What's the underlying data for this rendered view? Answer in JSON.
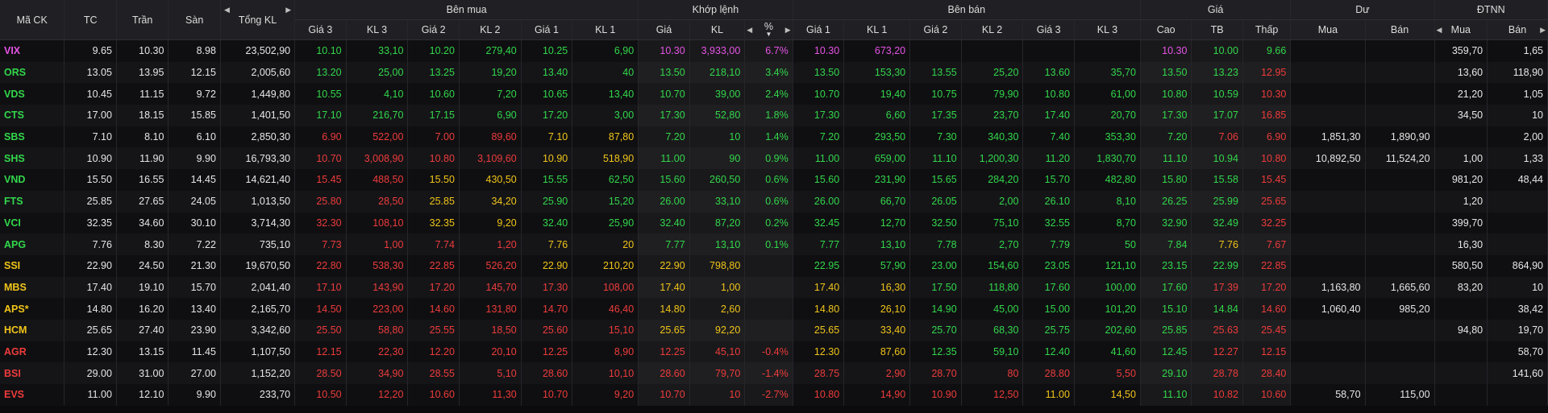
{
  "colors": {
    "up": "#32d74b",
    "down": "#ee3b3b",
    "reference": "#f0c419",
    "ceiling": "#e653e6",
    "floor": "#4dd6e6",
    "header_bg": "#202024",
    "row_bg": "#0f0f11"
  },
  "header": {
    "ma_ck": "Mã CK",
    "tc": "TC",
    "tran": "Trần",
    "san": "Sàn",
    "tong_kl": "Tổng KL",
    "group_buy": "Bên mua",
    "group_match": "Khớp lệnh",
    "group_sell": "Bên bán",
    "group_price": "Giá",
    "group_du": "Dư",
    "group_dtnn": "ĐTNN",
    "buy_cols": [
      "Giá 3",
      "KL 3",
      "Giá 2",
      "KL 2",
      "Giá 1",
      "KL 1"
    ],
    "match_cols": [
      "Giá",
      "KL",
      "%"
    ],
    "sell_cols": [
      "Giá 1",
      "KL 1",
      "Giá 2",
      "KL 2",
      "Giá 3",
      "KL 3"
    ],
    "price_cols": [
      "Cao",
      "TB",
      "Thấp"
    ],
    "du_cols": [
      "Mua",
      "Bán"
    ],
    "dtnn_cols": [
      "Mua",
      "Bán"
    ]
  },
  "rows": [
    {
      "sym": "VIX",
      "c": "ce",
      "tc": "9.65",
      "tran": "10.30",
      "san": "8.98",
      "tongkl": "23,502,90",
      "b3": [
        "10.10",
        "33,10",
        "up"
      ],
      "b2": [
        "10.20",
        "279,40",
        "up"
      ],
      "b1": [
        "10.25",
        "6,90",
        "up"
      ],
      "m": [
        "10.30",
        "3,933,00",
        "6.7%",
        "ce"
      ],
      "s1": [
        "10.30",
        "673,20",
        "ce"
      ],
      "s2": [
        "",
        "",
        ""
      ],
      "s3": [
        "",
        "",
        ""
      ],
      "cao": [
        "10.30",
        "ce"
      ],
      "tb": [
        "10.00",
        "up"
      ],
      "thap": [
        "9.66",
        "up"
      ],
      "du_mua": "",
      "du_ban": "",
      "nn_mua": "359,70",
      "nn_ban": "1,65"
    },
    {
      "sym": "ORS",
      "c": "up",
      "tc": "13.05",
      "tran": "13.95",
      "san": "12.15",
      "tongkl": "2,005,60",
      "b3": [
        "13.20",
        "25,00",
        "up"
      ],
      "b2": [
        "13.25",
        "19,20",
        "up"
      ],
      "b1": [
        "13.40",
        "40",
        "up"
      ],
      "m": [
        "13.50",
        "218,10",
        "3.4%",
        "up"
      ],
      "s1": [
        "13.50",
        "153,30",
        "up"
      ],
      "s2": [
        "13.55",
        "25,20",
        "up"
      ],
      "s3": [
        "13.60",
        "35,70",
        "up"
      ],
      "cao": [
        "13.50",
        "up"
      ],
      "tb": [
        "13.23",
        "up"
      ],
      "thap": [
        "12.95",
        "dn"
      ],
      "du_mua": "",
      "du_ban": "",
      "nn_mua": "13,60",
      "nn_ban": "118,90"
    },
    {
      "sym": "VDS",
      "c": "up",
      "tc": "10.45",
      "tran": "11.15",
      "san": "9.72",
      "tongkl": "1,449,80",
      "b3": [
        "10.55",
        "4,10",
        "up"
      ],
      "b2": [
        "10.60",
        "7,20",
        "up"
      ],
      "b1": [
        "10.65",
        "13,40",
        "up"
      ],
      "m": [
        "10.70",
        "39,00",
        "2.4%",
        "up"
      ],
      "s1": [
        "10.70",
        "19,40",
        "up"
      ],
      "s2": [
        "10.75",
        "79,90",
        "up"
      ],
      "s3": [
        "10.80",
        "61,00",
        "up"
      ],
      "cao": [
        "10.80",
        "up"
      ],
      "tb": [
        "10.59",
        "up"
      ],
      "thap": [
        "10.30",
        "dn"
      ],
      "du_mua": "",
      "du_ban": "",
      "nn_mua": "21,20",
      "nn_ban": "1,05"
    },
    {
      "sym": "CTS",
      "c": "up",
      "tc": "17.00",
      "tran": "18.15",
      "san": "15.85",
      "tongkl": "1,401,50",
      "b3": [
        "17.10",
        "216,70",
        "up"
      ],
      "b2": [
        "17.15",
        "6,90",
        "up"
      ],
      "b1": [
        "17.20",
        "3,00",
        "up"
      ],
      "m": [
        "17.30",
        "52,80",
        "1.8%",
        "up"
      ],
      "s1": [
        "17.30",
        "6,60",
        "up"
      ],
      "s2": [
        "17.35",
        "23,70",
        "up"
      ],
      "s3": [
        "17.40",
        "20,70",
        "up"
      ],
      "cao": [
        "17.30",
        "up"
      ],
      "tb": [
        "17.07",
        "up"
      ],
      "thap": [
        "16.85",
        "dn"
      ],
      "du_mua": "",
      "du_ban": "",
      "nn_mua": "34,50",
      "nn_ban": "10"
    },
    {
      "sym": "SBS",
      "c": "up",
      "tc": "7.10",
      "tran": "8.10",
      "san": "6.10",
      "tongkl": "2,850,30",
      "b3": [
        "6.90",
        "522,00",
        "dn"
      ],
      "b2": [
        "7.00",
        "89,60",
        "dn"
      ],
      "b1": [
        "7.10",
        "87,80",
        "ref"
      ],
      "m": [
        "7.20",
        "10",
        "1.4%",
        "up"
      ],
      "s1": [
        "7.20",
        "293,50",
        "up"
      ],
      "s2": [
        "7.30",
        "340,30",
        "up"
      ],
      "s3": [
        "7.40",
        "353,30",
        "up"
      ],
      "cao": [
        "7.20",
        "up"
      ],
      "tb": [
        "7.06",
        "dn"
      ],
      "thap": [
        "6.90",
        "dn"
      ],
      "du_mua": "1,851,30",
      "du_ban": "1,890,90",
      "nn_mua": "",
      "nn_ban": "2,00"
    },
    {
      "sym": "SHS",
      "c": "up",
      "tc": "10.90",
      "tran": "11.90",
      "san": "9.90",
      "tongkl": "16,793,30",
      "b3": [
        "10.70",
        "3,008,90",
        "dn"
      ],
      "b2": [
        "10.80",
        "3,109,60",
        "dn"
      ],
      "b1": [
        "10.90",
        "518,90",
        "ref"
      ],
      "m": [
        "11.00",
        "90",
        "0.9%",
        "up"
      ],
      "s1": [
        "11.00",
        "659,00",
        "up"
      ],
      "s2": [
        "11.10",
        "1,200,30",
        "up"
      ],
      "s3": [
        "11.20",
        "1,830,70",
        "up"
      ],
      "cao": [
        "11.10",
        "up"
      ],
      "tb": [
        "10.94",
        "up"
      ],
      "thap": [
        "10.80",
        "dn"
      ],
      "du_mua": "10,892,50",
      "du_ban": "11,524,20",
      "nn_mua": "1,00",
      "nn_ban": "1,33"
    },
    {
      "sym": "VND",
      "c": "up",
      "tc": "15.50",
      "tran": "16.55",
      "san": "14.45",
      "tongkl": "14,621,40",
      "b3": [
        "15.45",
        "488,50",
        "dn"
      ],
      "b2": [
        "15.50",
        "430,50",
        "ref"
      ],
      "b1": [
        "15.55",
        "62,50",
        "up"
      ],
      "m": [
        "15.60",
        "260,50",
        "0.6%",
        "up"
      ],
      "s1": [
        "15.60",
        "231,90",
        "up"
      ],
      "s2": [
        "15.65",
        "284,20",
        "up"
      ],
      "s3": [
        "15.70",
        "482,80",
        "up"
      ],
      "cao": [
        "15.80",
        "up"
      ],
      "tb": [
        "15.58",
        "up"
      ],
      "thap": [
        "15.45",
        "dn"
      ],
      "du_mua": "",
      "du_ban": "",
      "nn_mua": "981,20",
      "nn_ban": "48,44"
    },
    {
      "sym": "FTS",
      "c": "up",
      "tc": "25.85",
      "tran": "27.65",
      "san": "24.05",
      "tongkl": "1,013,50",
      "b3": [
        "25.80",
        "28,50",
        "dn"
      ],
      "b2": [
        "25.85",
        "34,20",
        "ref"
      ],
      "b1": [
        "25.90",
        "15,20",
        "up"
      ],
      "m": [
        "26.00",
        "33,10",
        "0.6%",
        "up"
      ],
      "s1": [
        "26.00",
        "66,70",
        "up"
      ],
      "s2": [
        "26.05",
        "2,00",
        "up"
      ],
      "s3": [
        "26.10",
        "8,10",
        "up"
      ],
      "cao": [
        "26.25",
        "up"
      ],
      "tb": [
        "25.99",
        "up"
      ],
      "thap": [
        "25.65",
        "dn"
      ],
      "du_mua": "",
      "du_ban": "",
      "nn_mua": "1,20",
      "nn_ban": ""
    },
    {
      "sym": "VCI",
      "c": "up",
      "tc": "32.35",
      "tran": "34.60",
      "san": "30.10",
      "tongkl": "3,714,30",
      "b3": [
        "32.30",
        "108,10",
        "dn"
      ],
      "b2": [
        "32.35",
        "9,20",
        "ref"
      ],
      "b1": [
        "32.40",
        "25,90",
        "up"
      ],
      "m": [
        "32.40",
        "87,20",
        "0.2%",
        "up"
      ],
      "s1": [
        "32.45",
        "12,70",
        "up"
      ],
      "s2": [
        "32.50",
        "75,10",
        "up"
      ],
      "s3": [
        "32.55",
        "8,70",
        "up"
      ],
      "cao": [
        "32.90",
        "up"
      ],
      "tb": [
        "32.49",
        "up"
      ],
      "thap": [
        "32.25",
        "dn"
      ],
      "du_mua": "",
      "du_ban": "",
      "nn_mua": "399,70",
      "nn_ban": ""
    },
    {
      "sym": "APG",
      "c": "up",
      "tc": "7.76",
      "tran": "8.30",
      "san": "7.22",
      "tongkl": "735,10",
      "b3": [
        "7.73",
        "1,00",
        "dn"
      ],
      "b2": [
        "7.74",
        "1,20",
        "dn"
      ],
      "b1": [
        "7.76",
        "20",
        "ref"
      ],
      "m": [
        "7.77",
        "13,10",
        "0.1%",
        "up"
      ],
      "s1": [
        "7.77",
        "13,10",
        "up"
      ],
      "s2": [
        "7.78",
        "2,70",
        "up"
      ],
      "s3": [
        "7.79",
        "50",
        "up"
      ],
      "cao": [
        "7.84",
        "up"
      ],
      "tb": [
        "7.76",
        "ref"
      ],
      "thap": [
        "7.67",
        "dn"
      ],
      "du_mua": "",
      "du_ban": "",
      "nn_mua": "16,30",
      "nn_ban": ""
    },
    {
      "sym": "SSI",
      "c": "ref",
      "tc": "22.90",
      "tran": "24.50",
      "san": "21.30",
      "tongkl": "19,670,50",
      "b3": [
        "22.80",
        "538,30",
        "dn"
      ],
      "b2": [
        "22.85",
        "526,20",
        "dn"
      ],
      "b1": [
        "22.90",
        "210,20",
        "ref"
      ],
      "m": [
        "22.90",
        "798,80",
        "",
        "ref"
      ],
      "s1": [
        "22.95",
        "57,90",
        "up"
      ],
      "s2": [
        "23.00",
        "154,60",
        "up"
      ],
      "s3": [
        "23.05",
        "121,10",
        "up"
      ],
      "cao": [
        "23.15",
        "up"
      ],
      "tb": [
        "22.99",
        "up"
      ],
      "thap": [
        "22.85",
        "dn"
      ],
      "du_mua": "",
      "du_ban": "",
      "nn_mua": "580,50",
      "nn_ban": "864,90"
    },
    {
      "sym": "MBS",
      "c": "ref",
      "tc": "17.40",
      "tran": "19.10",
      "san": "15.70",
      "tongkl": "2,041,40",
      "b3": [
        "17.10",
        "143,90",
        "dn"
      ],
      "b2": [
        "17.20",
        "145,70",
        "dn"
      ],
      "b1": [
        "17.30",
        "108,00",
        "dn"
      ],
      "m": [
        "17.40",
        "1,00",
        "",
        "ref"
      ],
      "s1": [
        "17.40",
        "16,30",
        "ref"
      ],
      "s2": [
        "17.50",
        "118,80",
        "up"
      ],
      "s3": [
        "17.60",
        "100,00",
        "up"
      ],
      "cao": [
        "17.60",
        "up"
      ],
      "tb": [
        "17.39",
        "dn"
      ],
      "thap": [
        "17.20",
        "dn"
      ],
      "du_mua": "1,163,80",
      "du_ban": "1,665,60",
      "nn_mua": "83,20",
      "nn_ban": "10"
    },
    {
      "sym": "APS*",
      "c": "ref",
      "tc": "14.80",
      "tran": "16.20",
      "san": "13.40",
      "tongkl": "2,165,70",
      "b3": [
        "14.50",
        "223,00",
        "dn"
      ],
      "b2": [
        "14.60",
        "131,80",
        "dn"
      ],
      "b1": [
        "14.70",
        "46,40",
        "dn"
      ],
      "m": [
        "14.80",
        "2,60",
        "",
        "ref"
      ],
      "s1": [
        "14.80",
        "26,10",
        "ref"
      ],
      "s2": [
        "14.90",
        "45,00",
        "up"
      ],
      "s3": [
        "15.00",
        "101,20",
        "up"
      ],
      "cao": [
        "15.10",
        "up"
      ],
      "tb": [
        "14.84",
        "up"
      ],
      "thap": [
        "14.60",
        "dn"
      ],
      "du_mua": "1,060,40",
      "du_ban": "985,20",
      "nn_mua": "",
      "nn_ban": "38,42"
    },
    {
      "sym": "HCM",
      "c": "ref",
      "tc": "25.65",
      "tran": "27.40",
      "san": "23.90",
      "tongkl": "3,342,60",
      "b3": [
        "25.50",
        "58,80",
        "dn"
      ],
      "b2": [
        "25.55",
        "18,50",
        "dn"
      ],
      "b1": [
        "25.60",
        "15,10",
        "dn"
      ],
      "m": [
        "25.65",
        "92,20",
        "",
        "ref"
      ],
      "s1": [
        "25.65",
        "33,40",
        "ref"
      ],
      "s2": [
        "25.70",
        "68,30",
        "up"
      ],
      "s3": [
        "25.75",
        "202,60",
        "up"
      ],
      "cao": [
        "25.85",
        "up"
      ],
      "tb": [
        "25.63",
        "dn"
      ],
      "thap": [
        "25.45",
        "dn"
      ],
      "du_mua": "",
      "du_ban": "",
      "nn_mua": "94,80",
      "nn_ban": "19,70"
    },
    {
      "sym": "AGR",
      "c": "dn",
      "tc": "12.30",
      "tran": "13.15",
      "san": "11.45",
      "tongkl": "1,107,50",
      "b3": [
        "12.15",
        "22,30",
        "dn"
      ],
      "b2": [
        "12.20",
        "20,10",
        "dn"
      ],
      "b1": [
        "12.25",
        "8,90",
        "dn"
      ],
      "m": [
        "12.25",
        "45,10",
        "-0.4%",
        "dn"
      ],
      "s1": [
        "12.30",
        "87,60",
        "ref"
      ],
      "s2": [
        "12.35",
        "59,10",
        "up"
      ],
      "s3": [
        "12.40",
        "41,60",
        "up"
      ],
      "cao": [
        "12.45",
        "up"
      ],
      "tb": [
        "12.27",
        "dn"
      ],
      "thap": [
        "12.15",
        "dn"
      ],
      "du_mua": "",
      "du_ban": "",
      "nn_mua": "",
      "nn_ban": "58,70"
    },
    {
      "sym": "BSI",
      "c": "dn",
      "tc": "29.00",
      "tran": "31.00",
      "san": "27.00",
      "tongkl": "1,152,20",
      "b3": [
        "28.50",
        "34,90",
        "dn"
      ],
      "b2": [
        "28.55",
        "5,10",
        "dn"
      ],
      "b1": [
        "28.60",
        "10,10",
        "dn"
      ],
      "m": [
        "28.60",
        "79,70",
        "-1.4%",
        "dn"
      ],
      "s1": [
        "28.75",
        "2,90",
        "dn"
      ],
      "s2": [
        "28.70",
        "80",
        "dn"
      ],
      "s3": [
        "28.80",
        "5,50",
        "dn"
      ],
      "cao": [
        "29.10",
        "up"
      ],
      "tb": [
        "28.78",
        "dn"
      ],
      "thap": [
        "28.40",
        "dn"
      ],
      "du_mua": "",
      "du_ban": "",
      "nn_mua": "",
      "nn_ban": "141,60"
    },
    {
      "sym": "EVS",
      "c": "dn",
      "tc": "11.00",
      "tran": "12.10",
      "san": "9.90",
      "tongkl": "233,70",
      "b3": [
        "10.50",
        "12,20",
        "dn"
      ],
      "b2": [
        "10.60",
        "11,30",
        "dn"
      ],
      "b1": [
        "10.70",
        "9,20",
        "dn"
      ],
      "m": [
        "10.70",
        "10",
        "-2.7%",
        "dn"
      ],
      "s1": [
        "10.80",
        "14,90",
        "dn"
      ],
      "s2": [
        "10.90",
        "12,50",
        "dn"
      ],
      "s3": [
        "11.00",
        "14,50",
        "ref"
      ],
      "cao": [
        "11.10",
        "up"
      ],
      "tb": [
        "10.82",
        "dn"
      ],
      "thap": [
        "10.60",
        "dn"
      ],
      "du_mua": "58,70",
      "du_ban": "115,00",
      "nn_mua": "",
      "nn_ban": ""
    }
  ]
}
